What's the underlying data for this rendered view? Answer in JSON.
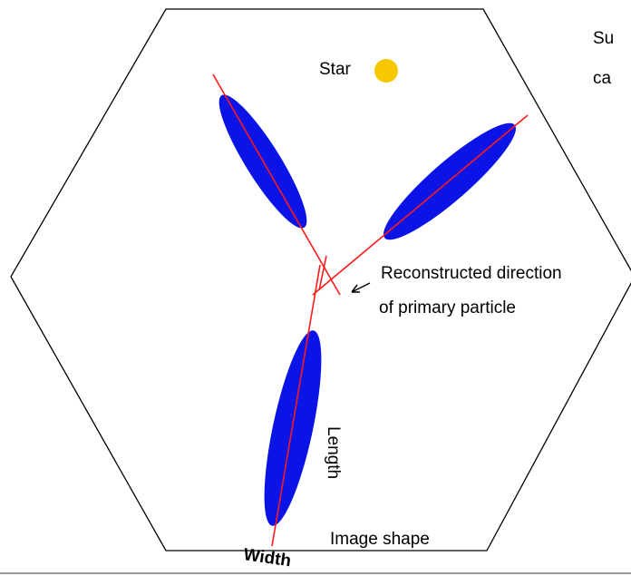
{
  "labels": {
    "star": "Star",
    "direction_line1": "Reconstructed direction",
    "direction_line2": "of primary particle",
    "length": "Length",
    "width": "Width",
    "image_shape": "Image shape",
    "cut_text_line1": "Su",
    "cut_text_line2": "ca"
  }
}
